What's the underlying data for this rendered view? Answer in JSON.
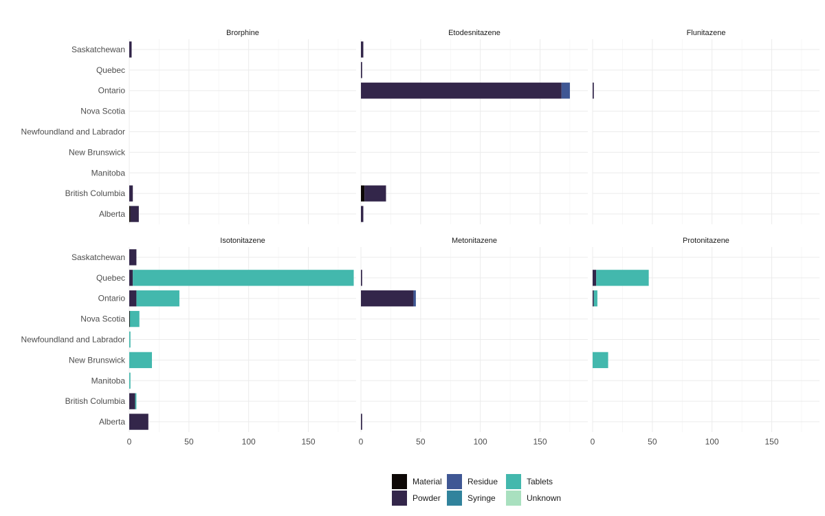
{
  "chart_data": {
    "type": "bar",
    "orientation": "horizontal",
    "stacked": true,
    "faceted": true,
    "categories": [
      "Saskatchewan",
      "Quebec",
      "Ontario",
      "Nova Scotia",
      "Newfoundland and Labrador",
      "New Brunswick",
      "Manitoba",
      "British Columbia",
      "Alberta"
    ],
    "stack_order": [
      "Material",
      "Powder",
      "Residue",
      "Syringe",
      "Tablets",
      "Unknown"
    ],
    "xlim": [
      0,
      190
    ],
    "x_ticks": [
      0,
      50,
      100,
      150
    ],
    "grid": true,
    "legend_position": "bottom",
    "legend": [
      {
        "label": "Material",
        "color": "#0d0806"
      },
      {
        "label": "Residue",
        "color": "#3f5794"
      },
      {
        "label": "Tablets",
        "color": "#43b8ad"
      },
      {
        "label": "Powder",
        "color": "#33264a"
      },
      {
        "label": "Syringe",
        "color": "#31839c"
      },
      {
        "label": "Unknown",
        "color": "#a9e0bf"
      }
    ],
    "panels": [
      {
        "title": "Brorphine",
        "values": {
          "Saskatchewan": {
            "Powder": 2
          },
          "British Columbia": {
            "Powder": 3
          },
          "Alberta": {
            "Material": 1,
            "Powder": 7
          }
        }
      },
      {
        "title": "Etodesnitazene",
        "values": {
          "Saskatchewan": {
            "Powder": 2
          },
          "Quebec": {
            "Powder": 1
          },
          "Ontario": {
            "Powder": 168,
            "Residue": 7
          },
          "British Columbia": {
            "Material": 3,
            "Powder": 18
          },
          "Alberta": {
            "Powder": 2
          }
        }
      },
      {
        "title": "Flunitazene",
        "values": {
          "Ontario": {
            "Powder": 1
          }
        }
      },
      {
        "title": "Isotonitazene",
        "values": {
          "Saskatchewan": {
            "Powder": 6
          },
          "Quebec": {
            "Powder": 3,
            "Tablets": 185
          },
          "Ontario": {
            "Powder": 6,
            "Tablets": 36
          },
          "Nova Scotia": {
            "Material": 0.5,
            "Tablets": 8
          },
          "Newfoundland and Labrador": {
            "Tablets": 1
          },
          "New Brunswick": {
            "Tablets": 19
          },
          "Manitoba": {
            "Tablets": 1
          },
          "British Columbia": {
            "Powder": 5,
            "Tablets": 1
          },
          "Alberta": {
            "Powder": 16
          }
        }
      },
      {
        "title": "Metonitazene",
        "values": {
          "Quebec": {
            "Powder": 1
          },
          "Ontario": {
            "Powder": 44,
            "Residue": 2
          },
          "Alberta": {
            "Powder": 1
          }
        }
      },
      {
        "title": "Protonitazene",
        "values": {
          "Quebec": {
            "Powder": 3,
            "Tablets": 44
          },
          "Ontario": {
            "Powder": 1,
            "Tablets": 3
          },
          "New Brunswick": {
            "Tablets": 13
          }
        }
      }
    ]
  }
}
